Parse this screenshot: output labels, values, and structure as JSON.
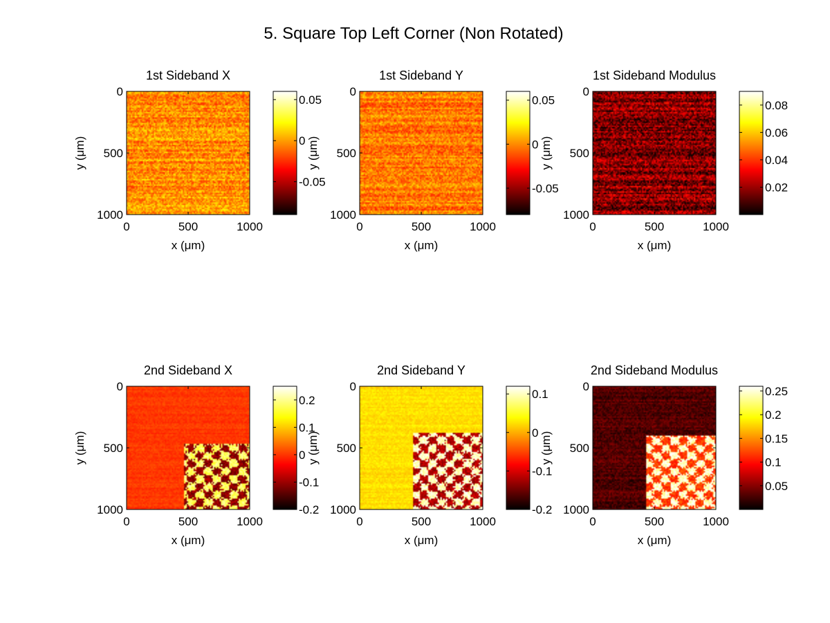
{
  "figure": {
    "title": "5. Square Top Left Corner (Non Rotated)"
  },
  "colormap": "hot",
  "chart_data": [
    {
      "type": "heatmap",
      "title": "1st Sideband X",
      "xlabel": "x (μm)",
      "ylabel": "y (μm)",
      "xlim": [
        0,
        1000
      ],
      "ylim": [
        0,
        1000
      ],
      "x_ticks": [
        0,
        500,
        1000
      ],
      "y_ticks": [
        0,
        500,
        1000
      ],
      "y_reversed": true,
      "clim": [
        -0.09,
        0.06
      ],
      "colorbar_ticks": [
        {
          "value": 0.05,
          "label": "0.05"
        },
        {
          "value": 0,
          "label": "0"
        },
        {
          "value": -0.05,
          "label": "-0.05"
        }
      ],
      "background_level": 0.58,
      "noise": 0.22,
      "square": null
    },
    {
      "type": "heatmap",
      "title": "1st Sideband Y",
      "xlabel": "x (μm)",
      "ylabel": "y (μm)",
      "xlim": [
        0,
        1000
      ],
      "ylim": [
        0,
        1000
      ],
      "x_ticks": [
        0,
        500,
        1000
      ],
      "y_ticks": [
        0,
        500,
        1000
      ],
      "y_reversed": true,
      "clim": [
        -0.08,
        0.06
      ],
      "colorbar_ticks": [
        {
          "value": 0.05,
          "label": "0.05"
        },
        {
          "value": 0,
          "label": "0"
        },
        {
          "value": -0.05,
          "label": "-0.05"
        }
      ],
      "background_level": 0.55,
      "noise": 0.2,
      "square": null
    },
    {
      "type": "heatmap",
      "title": "1st Sideband Modulus",
      "xlabel": "x (μm)",
      "ylabel": "y (μm)",
      "xlim": [
        0,
        1000
      ],
      "ylim": [
        0,
        1000
      ],
      "x_ticks": [
        0,
        500,
        1000
      ],
      "y_ticks": [
        0,
        500,
        1000
      ],
      "y_reversed": true,
      "clim": [
        0,
        0.09
      ],
      "colorbar_ticks": [
        {
          "value": 0.08,
          "label": "0.08"
        },
        {
          "value": 0.06,
          "label": "0.06"
        },
        {
          "value": 0.04,
          "label": "0.04"
        },
        {
          "value": 0.02,
          "label": "0.02"
        }
      ],
      "background_level": 0.2,
      "noise": 0.3,
      "square": null
    },
    {
      "type": "heatmap",
      "title": "2nd Sideband X",
      "xlabel": "x (μm)",
      "ylabel": "y (μm)",
      "xlim": [
        0,
        1000
      ],
      "ylim": [
        0,
        1000
      ],
      "x_ticks": [
        0,
        500,
        1000
      ],
      "y_ticks": [
        0,
        500,
        1000
      ],
      "y_reversed": true,
      "clim": [
        -0.2,
        0.25
      ],
      "colorbar_ticks": [
        {
          "value": 0.2,
          "label": "0.2"
        },
        {
          "value": 0.1,
          "label": "0.1"
        },
        {
          "value": 0,
          "label": "0"
        },
        {
          "value": -0.1,
          "label": "-0.1"
        },
        {
          "value": -0.2,
          "label": "-0.2"
        }
      ],
      "background_level": 0.45,
      "noise": 0.06,
      "square": {
        "x_start": 470,
        "y_start": 470,
        "levels": [
          0.2,
          0.85
        ]
      }
    },
    {
      "type": "heatmap",
      "title": "2nd Sideband Y",
      "xlabel": "x (μm)",
      "ylabel": "y (μm)",
      "xlim": [
        0,
        1000
      ],
      "ylim": [
        0,
        1000
      ],
      "x_ticks": [
        0,
        500,
        1000
      ],
      "y_ticks": [
        0,
        500,
        1000
      ],
      "y_reversed": true,
      "clim": [
        -0.2,
        0.12
      ],
      "colorbar_ticks": [
        {
          "value": 0.1,
          "label": "0.1"
        },
        {
          "value": 0,
          "label": "0"
        },
        {
          "value": -0.1,
          "label": "-0.1"
        },
        {
          "value": -0.2,
          "label": "-0.2"
        }
      ],
      "background_level": 0.7,
      "noise": 0.07,
      "square": {
        "x_start": 430,
        "y_start": 380,
        "levels": [
          0.25,
          0.95
        ]
      }
    },
    {
      "type": "heatmap",
      "title": "2nd Sideband Modulus",
      "xlabel": "x (μm)",
      "ylabel": "y (μm)",
      "xlim": [
        0,
        1000
      ],
      "ylim": [
        0,
        1000
      ],
      "x_ticks": [
        0,
        500,
        1000
      ],
      "y_ticks": [
        0,
        500,
        1000
      ],
      "y_reversed": true,
      "clim": [
        0,
        0.26
      ],
      "colorbar_ticks": [
        {
          "value": 0.25,
          "label": "0.25"
        },
        {
          "value": 0.2,
          "label": "0.2"
        },
        {
          "value": 0.15,
          "label": "0.15"
        },
        {
          "value": 0.1,
          "label": "0.1"
        },
        {
          "value": 0.05,
          "label": "0.05"
        }
      ],
      "background_level": 0.12,
      "noise": 0.12,
      "square": {
        "x_start": 430,
        "y_start": 400,
        "levels": [
          0.45,
          0.95
        ]
      }
    }
  ]
}
